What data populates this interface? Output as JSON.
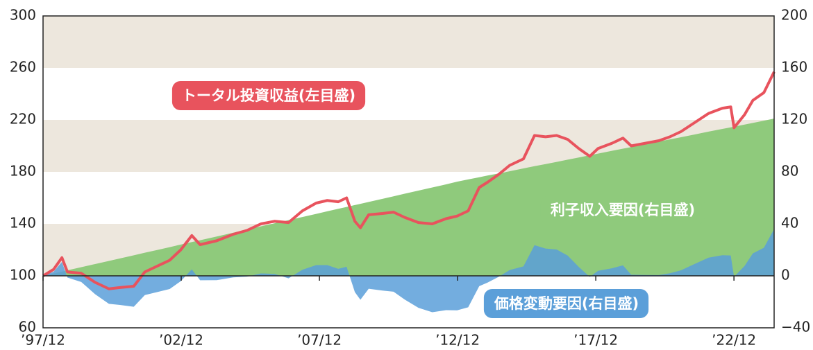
{
  "chart_data": {
    "type": "line-area",
    "x": [
      1997.92,
      1998.3,
      1998.6,
      1998.8,
      1999.3,
      1999.8,
      2000.3,
      2000.7,
      2001.2,
      2001.6,
      2002.0,
      2002.5,
      2002.9,
      2003.3,
      2003.6,
      2004.2,
      2004.8,
      2005.3,
      2005.8,
      2006.3,
      2006.8,
      2007.3,
      2007.8,
      2008.2,
      2008.6,
      2008.9,
      2009.2,
      2009.4,
      2009.7,
      2010.2,
      2010.6,
      2011.0,
      2011.5,
      2012.0,
      2012.5,
      2012.9,
      2013.3,
      2013.7,
      2014.0,
      2014.4,
      2014.8,
      2015.3,
      2015.7,
      2016.1,
      2016.5,
      2016.9,
      2017.3,
      2017.7,
      2018.0,
      2018.5,
      2018.9,
      2019.2,
      2019.7,
      2020.2,
      2020.6,
      2021.0,
      2021.5,
      2022.0,
      2022.5,
      2022.8,
      2022.92,
      2023.3,
      2023.6,
      2024.0,
      2024.37
    ],
    "series": [
      {
        "name": "利子収入要因(右目盛)",
        "color": "#8fca7c",
        "kind": "area",
        "axis": "y2",
        "values": [
          0,
          1.8,
          3.3,
          4.3,
          6.7,
          9.1,
          11.5,
          13.4,
          15.8,
          17.8,
          19.7,
          22.1,
          24.1,
          26.0,
          27.4,
          30.3,
          33.2,
          35.6,
          38.1,
          40.5,
          42.9,
          45.3,
          47.7,
          49.7,
          51.6,
          53.0,
          54.5,
          55.4,
          56.9,
          59.3,
          61.2,
          63.2,
          65.6,
          68.0,
          70.4,
          72.5,
          74.2,
          75.9,
          77.2,
          78.8,
          80.5,
          82.7,
          84.4,
          86.0,
          87.7,
          89.4,
          91.1,
          92.8,
          94.1,
          96.2,
          97.9,
          99.1,
          101.3,
          103.4,
          105.0,
          106.7,
          108.8,
          111.0,
          113.1,
          114.3,
          114.8,
          116.4,
          117.7,
          119.4,
          121.0
        ]
      },
      {
        "name": "価格変動要因(右目盛)",
        "color": "#5b9fd9",
        "kind": "area",
        "axis": "y2",
        "values": [
          0,
          3.2,
          10.7,
          -1.3,
          -4.7,
          -14.1,
          -21.5,
          -22.4,
          -23.8,
          -14.8,
          -12.7,
          -10.1,
          -4.1,
          5.0,
          -3.4,
          -3.3,
          -1.2,
          -0.6,
          1.9,
          1.5,
          -1.9,
          4.7,
          8.3,
          8.3,
          5.4,
          7.0,
          -12.5,
          -18.4,
          -9.9,
          -11.3,
          -12.2,
          -18.2,
          -24.6,
          -28.0,
          -26.4,
          -26.5,
          -24.2,
          -7.9,
          -5.2,
          -0.8,
          4.5,
          7.3,
          23.6,
          21.0,
          20.3,
          15.6,
          6.9,
          -0.8,
          3.9,
          5.8,
          8.1,
          0.9,
          0.7,
          0.6,
          2.0,
          4.3,
          9.2,
          14.0,
          15.9,
          15.7,
          -0.8,
          7.6,
          17.3,
          21.6,
          36.0
        ]
      },
      {
        "name": "トータル投資収益(左目盛)",
        "color": "#e8535d",
        "kind": "line",
        "values": [
          100,
          105,
          114,
          103,
          102,
          95,
          90,
          91,
          92,
          103,
          107,
          112,
          120,
          131,
          124,
          127,
          132,
          135,
          140,
          142,
          141,
          150,
          156,
          158,
          157,
          160,
          142,
          137,
          147,
          148,
          149,
          145,
          141,
          140,
          144,
          146,
          150,
          168,
          172,
          178,
          185,
          190,
          208,
          207,
          208,
          205,
          198,
          192,
          198,
          202,
          206,
          200,
          202,
          204,
          207,
          211,
          218,
          225,
          229,
          230,
          214,
          224,
          235,
          241,
          257
        ]
      }
    ],
    "xlim": [
      1997.917,
      2024.37
    ],
    "xticks": [
      {
        "value": 1997.917,
        "label": "’97/12"
      },
      {
        "value": 2002.917,
        "label": "’02/12"
      },
      {
        "value": 2007.917,
        "label": "’07/12"
      },
      {
        "value": 2012.917,
        "label": "’12/12"
      },
      {
        "value": 2017.917,
        "label": "’17/12"
      },
      {
        "value": 2022.917,
        "label": "’22/12"
      }
    ],
    "ylim": [
      60,
      300
    ],
    "yticks": [
      60,
      100,
      140,
      180,
      220,
      260,
      300
    ],
    "y2lim": [
      -40,
      200
    ],
    "y2ticks": [
      {
        "value": -40,
        "label": "−40"
      },
      0,
      40,
      80,
      120,
      160,
      200
    ],
    "band_color": "#ede7dd"
  }
}
